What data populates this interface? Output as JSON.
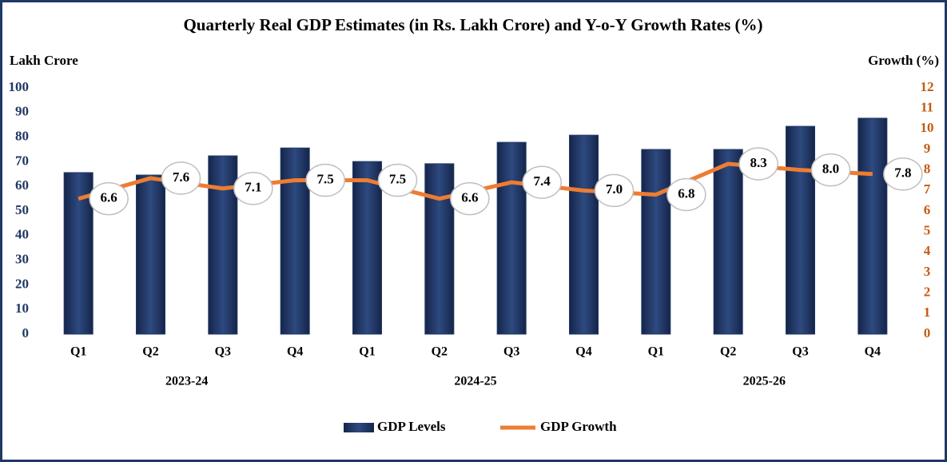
{
  "chart_data": {
    "type": "bar-line",
    "title": "Quarterly Real GDP Estimates (in Rs. Lakh Crore) and Y-o-Y Growth Rates (%)",
    "y_label": "Lakh Crore",
    "y2_label": "Growth (%)",
    "categories": [
      "Q1",
      "Q2",
      "Q3",
      "Q4",
      "Q1",
      "Q2",
      "Q3",
      "Q4",
      "Q1",
      "Q2",
      "Q3",
      "Q4"
    ],
    "groups": [
      "2023-24",
      "2024-25",
      "2025-26"
    ],
    "series": [
      {
        "name": "GDP Levels",
        "type": "bar",
        "color": "#1f3864",
        "values": [
          65.6,
          64.6,
          72.4,
          75.6,
          70.1,
          69.2,
          77.9,
          80.8,
          75.0,
          75.0,
          84.4,
          87.7
        ]
      },
      {
        "name": "GDP Growth",
        "type": "line",
        "axis": "y2",
        "color": "#ed7d31",
        "values": [
          6.6,
          7.6,
          7.1,
          7.5,
          7.5,
          6.6,
          7.4,
          7.0,
          6.8,
          8.3,
          8.0,
          7.8
        ],
        "value_labels": [
          "6.6",
          "7.6",
          "7.1",
          "7.5",
          "7.5",
          "6.6",
          "7.4",
          "7.0",
          "6.8",
          "8.3",
          "8.0",
          "7.8"
        ]
      }
    ],
    "ylim": [
      0,
      100
    ],
    "yticks": [
      0,
      10,
      20,
      30,
      40,
      50,
      60,
      70,
      80,
      90,
      100
    ],
    "y2lim": [
      0,
      12
    ],
    "y2ticks": [
      0,
      1,
      2,
      3,
      4,
      5,
      6,
      7,
      8,
      9,
      10,
      11,
      12
    ],
    "legend": "bottom",
    "grid": false
  }
}
